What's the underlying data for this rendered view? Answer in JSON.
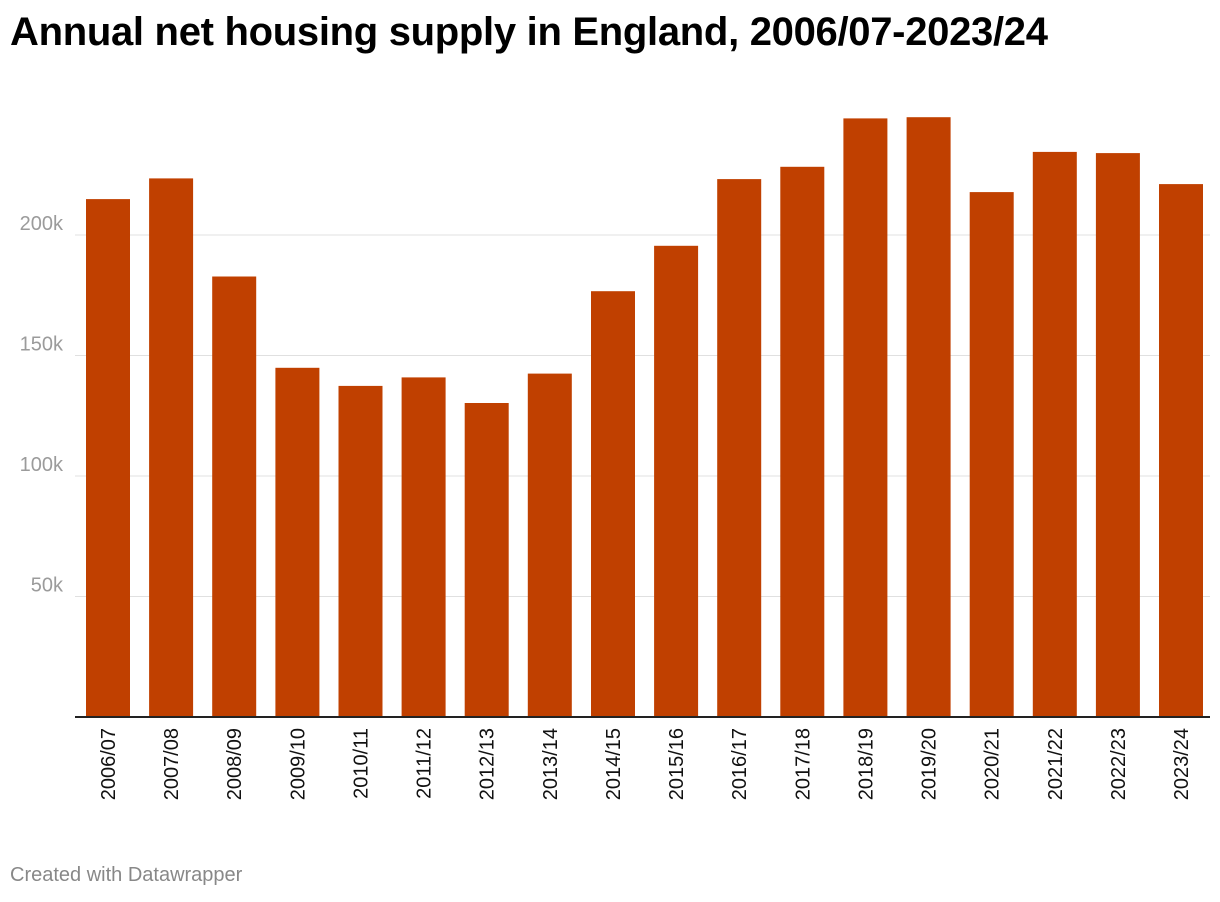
{
  "chart_data": {
    "type": "bar",
    "title": "Annual net housing supply in England, 2006/07-2023/24",
    "xlabel": "",
    "ylabel": "",
    "categories": [
      "2006/07",
      "2007/08",
      "2008/09",
      "2009/10",
      "2010/11",
      "2011/12",
      "2012/13",
      "2013/14",
      "2014/15",
      "2015/16",
      "2016/17",
      "2017/18",
      "2018/19",
      "2019/20",
      "2020/21",
      "2021/22",
      "2022/23",
      "2023/24"
    ],
    "values": [
      214900,
      223500,
      182800,
      144900,
      137400,
      140900,
      130300,
      142500,
      176700,
      195500,
      223200,
      228300,
      248400,
      248900,
      217800,
      234500,
      234000,
      221100
    ],
    "ylim": [
      0,
      250000
    ],
    "yticks": [
      50000,
      100000,
      150000,
      200000
    ],
    "ytick_labels": [
      "50k",
      "100k",
      "150k",
      "200k"
    ],
    "grid": true,
    "legend": "none",
    "bar_color": "#c04000"
  },
  "footer": {
    "credit": "Created with Datawrapper"
  }
}
